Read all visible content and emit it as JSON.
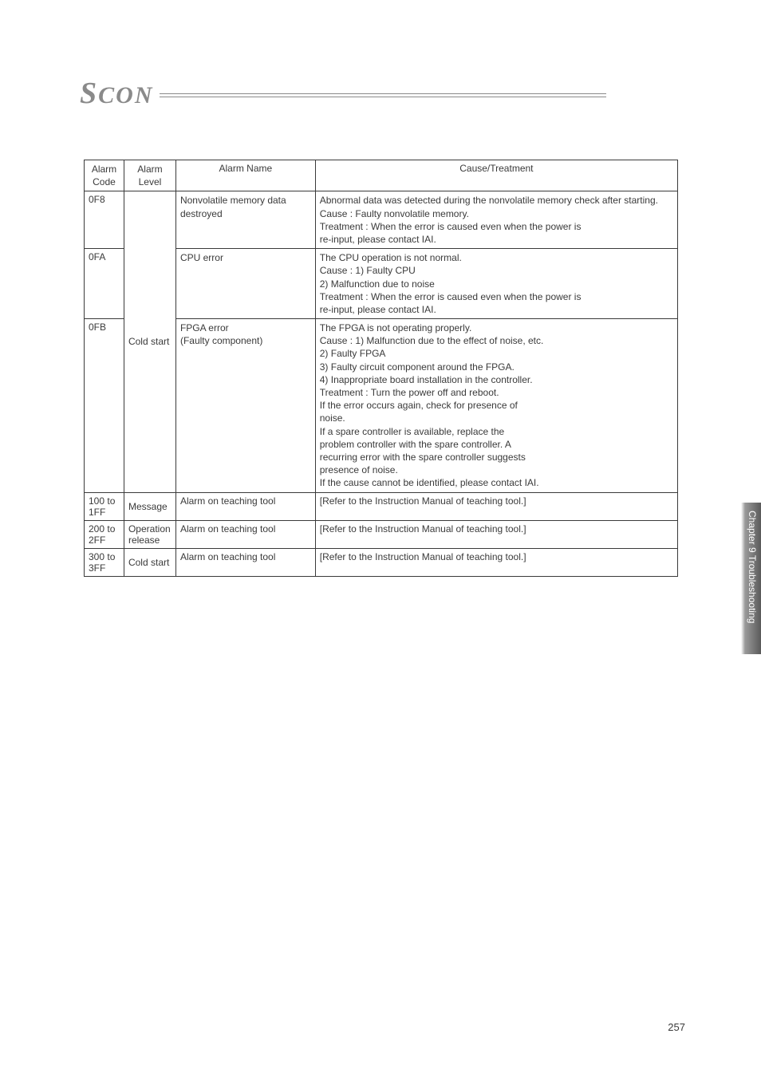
{
  "logo": {
    "text_big": "S",
    "text_rest": "CON"
  },
  "side_label": "Chapter 9 Troubleshooting",
  "page_number": "257",
  "table": {
    "headers": {
      "code": "Alarm\nCode",
      "level": "Alarm\nLevel",
      "name": "Alarm Name",
      "cause": "Cause/Treatment"
    },
    "rows": [
      {
        "code": "0F8",
        "level": "",
        "name": "Nonvolatile memory data destroyed",
        "cause": "Abnormal data was detected during the nonvolatile memory check after starting.\nCause        : Faulty nonvolatile memory.\nTreatment : When the error is caused even when the power is\n                    re-input, please contact IAI."
      },
      {
        "code": "0FA",
        "level": "",
        "name": "CPU error",
        "cause": "The CPU operation is not normal.\nCause        : 1) Faulty CPU\n                    2) Malfunction due to noise\nTreatment : When the error is caused even when the power is\n                    re-input, please contact IAI."
      },
      {
        "code": "0FB",
        "level": "Cold start",
        "name": "FPGA error\n(Faulty component)",
        "cause": "The FPGA is not operating properly.\nCause        : 1) Malfunction due to the effect of noise, etc.\n                    2) Faulty FPGA\n                    3) Faulty circuit component around the FPGA.\n                    4) Inappropriate board installation in the controller.\nTreatment : Turn the power off and reboot.\n                    If the error occurs again, check for presence of\n                    noise.\n                    If a spare controller is available, replace the\n                    problem controller with the spare controller. A\n                    recurring error with the spare controller suggests\n                    presence of noise.\n                    If the cause cannot be identified, please contact IAI."
      },
      {
        "code": "100 to 1FF",
        "level": "Message",
        "name": "Alarm on teaching tool",
        "cause": "[Refer to the Instruction Manual of teaching tool.]"
      },
      {
        "code": "200 to 2FF",
        "level": "Operation release",
        "name": "Alarm on teaching tool",
        "cause": "[Refer to the Instruction Manual of teaching tool.]"
      },
      {
        "code": "300 to 3FF",
        "level": "Cold start",
        "name": "Alarm on teaching tool",
        "cause": "[Refer to the Instruction Manual of teaching tool.]"
      }
    ]
  }
}
